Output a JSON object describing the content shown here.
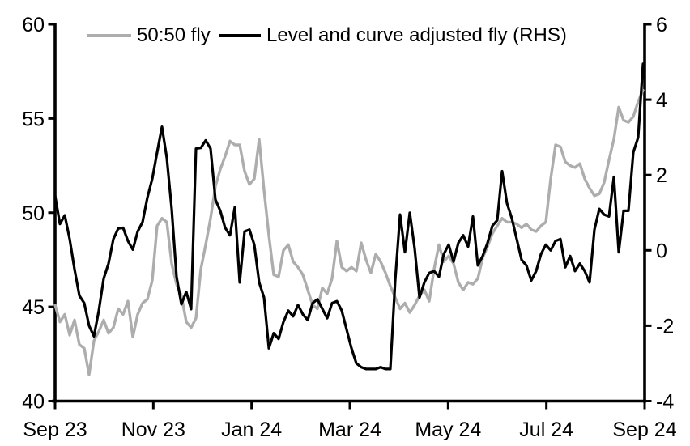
{
  "chart_data": {
    "type": "line",
    "title": "",
    "grid": false,
    "legend_position": "top-inside",
    "x_axis": {
      "tick_labels": [
        "Sep 23",
        "Nov 23",
        "Jan 24",
        "Mar 24",
        "May 24",
        "Jul 24",
        "Sep 24"
      ]
    },
    "left_axis": {
      "min": 40,
      "max": 60,
      "ticks": [
        60,
        55,
        50,
        45,
        40
      ]
    },
    "right_axis": {
      "min": -4,
      "max": 6,
      "ticks": [
        6,
        4,
        2,
        0,
        -2,
        -4
      ]
    },
    "axis_color": "#000000",
    "series": [
      {
        "name": "50:50 fly",
        "axis": "left",
        "color": "#adadad",
        "values": [
          45.1,
          44.2,
          44.6,
          43.5,
          44.3,
          43.0,
          42.8,
          41.4,
          43.2,
          43.7,
          44.3,
          43.6,
          43.9,
          44.9,
          44.6,
          45.3,
          43.4,
          44.6,
          45.2,
          45.4,
          46.4,
          49.3,
          49.7,
          49.5,
          47.3,
          46.2,
          45.6,
          44.2,
          43.9,
          44.4,
          47.0,
          48.3,
          49.7,
          51.4,
          52.3,
          53.0,
          53.8,
          53.6,
          53.6,
          52.2,
          51.5,
          51.8,
          53.9,
          51.2,
          48.8,
          46.7,
          46.6,
          48.0,
          48.3,
          47.4,
          47.1,
          46.7,
          45.9,
          45.1,
          44.9,
          46.0,
          45.7,
          46.5,
          48.5,
          47.1,
          46.9,
          47.1,
          46.9,
          48.4,
          47.5,
          46.8,
          47.8,
          47.4,
          46.8,
          46.1,
          45.5,
          44.9,
          45.2,
          44.7,
          45.1,
          45.6,
          45.9,
          45.3,
          47.0,
          48.3,
          47.4,
          47.7,
          47.3,
          46.3,
          45.9,
          46.3,
          46.2,
          46.5,
          47.6,
          48.2,
          48.9,
          49.3,
          49.7,
          49.5,
          49.5,
          49.4,
          49.2,
          49.4,
          49.1,
          49.0,
          49.3,
          49.5,
          51.8,
          53.6,
          53.5,
          52.7,
          52.5,
          52.4,
          52.6,
          51.8,
          51.3,
          50.9,
          51.0,
          51.6,
          52.8,
          53.9,
          55.6,
          54.9,
          54.8,
          55.1,
          55.9,
          56.5
        ]
      },
      {
        "name": "Level and curve adjusted fly (RHS)",
        "axis": "right",
        "color": "#000000",
        "values": [
          1.45,
          0.7,
          0.93,
          0.3,
          -0.5,
          -1.2,
          -1.4,
          -2.0,
          -2.28,
          -1.6,
          -0.75,
          -0.35,
          0.3,
          0.58,
          0.6,
          0.25,
          0.02,
          0.5,
          0.75,
          1.4,
          1.9,
          2.6,
          3.28,
          2.45,
          1.1,
          -0.7,
          -1.43,
          -1.1,
          -1.56,
          2.7,
          2.72,
          2.92,
          2.7,
          1.35,
          1.05,
          0.6,
          0.4,
          1.15,
          -0.85,
          0.5,
          0.55,
          0.15,
          -0.85,
          -1.25,
          -2.6,
          -2.2,
          -2.35,
          -1.9,
          -1.6,
          -1.75,
          -1.45,
          -1.7,
          -1.85,
          -1.4,
          -1.3,
          -1.55,
          -1.8,
          -1.4,
          -1.35,
          -1.6,
          -2.1,
          -2.6,
          -3.0,
          -3.1,
          -3.15,
          -3.15,
          -3.15,
          -3.1,
          -3.15,
          -3.15,
          -0.8,
          0.95,
          -0.05,
          1.0,
          0.05,
          -1.25,
          -0.85,
          -0.6,
          -0.55,
          -0.7,
          -0.1,
          0.15,
          -0.3,
          0.2,
          0.4,
          0.1,
          0.9,
          -0.4,
          -0.15,
          0.2,
          0.65,
          0.8,
          2.1,
          1.25,
          0.85,
          0.3,
          -0.25,
          -0.4,
          -0.8,
          -0.55,
          -0.1,
          0.15,
          0.0,
          0.25,
          0.3,
          -0.45,
          -0.15,
          -0.55,
          -0.35,
          -0.55,
          -0.85,
          0.55,
          1.1,
          0.95,
          0.9,
          1.95,
          -0.05,
          1.05,
          1.05,
          2.6,
          3.0,
          4.95
        ]
      }
    ]
  }
}
